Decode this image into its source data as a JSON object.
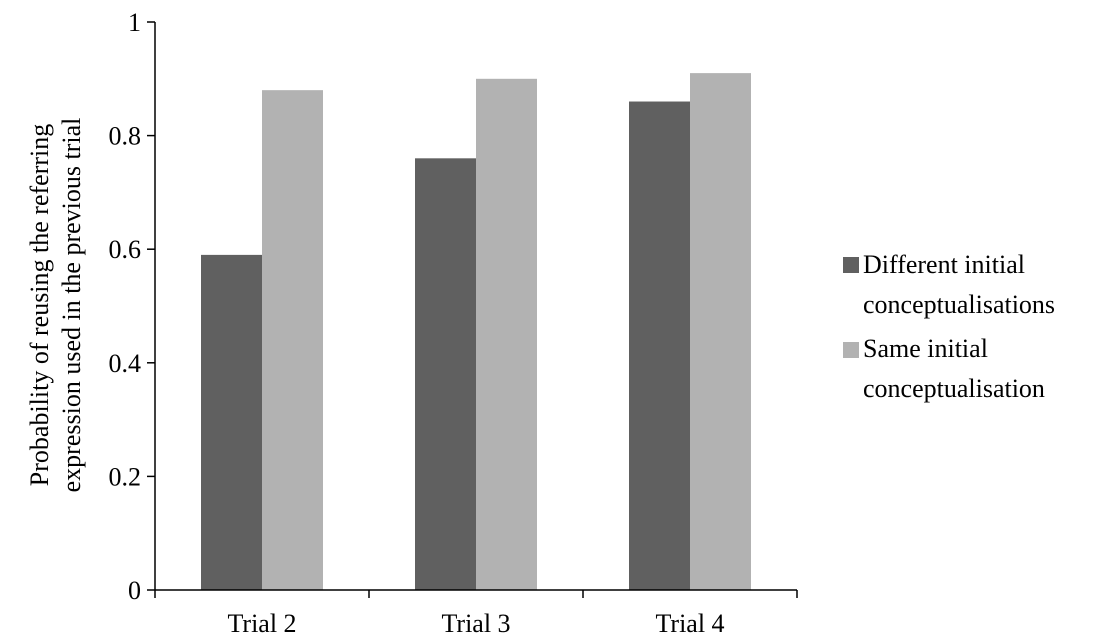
{
  "chart_data": {
    "type": "bar",
    "categories": [
      "Trial 2",
      "Trial 3",
      "Trial 4"
    ],
    "series": [
      {
        "name": "Different initial conceptualisations",
        "values": [
          0.59,
          0.76,
          0.86
        ],
        "color": "#606060"
      },
      {
        "name": "Same initial conceptualisation",
        "values": [
          0.88,
          0.9,
          0.91
        ],
        "color": "#b2b2b2"
      }
    ],
    "legend_lines": [
      [
        "Different initial",
        "conceptualisations"
      ],
      [
        "Same initial",
        "conceptualisation"
      ]
    ],
    "ylabel": "Probability of reusing the referring expression used in the previous trial",
    "ylabel_lines": [
      "Probability of reusing the referring",
      "expression used in the previous trial"
    ],
    "ylim": [
      0,
      1
    ],
    "yticks": [
      "0",
      "0.2",
      "0.4",
      "0.6",
      "0.8",
      "1"
    ],
    "yticks_values": [
      0,
      0.2,
      0.4,
      0.6,
      0.8,
      1
    ],
    "grid": false,
    "legend_position": "right"
  }
}
